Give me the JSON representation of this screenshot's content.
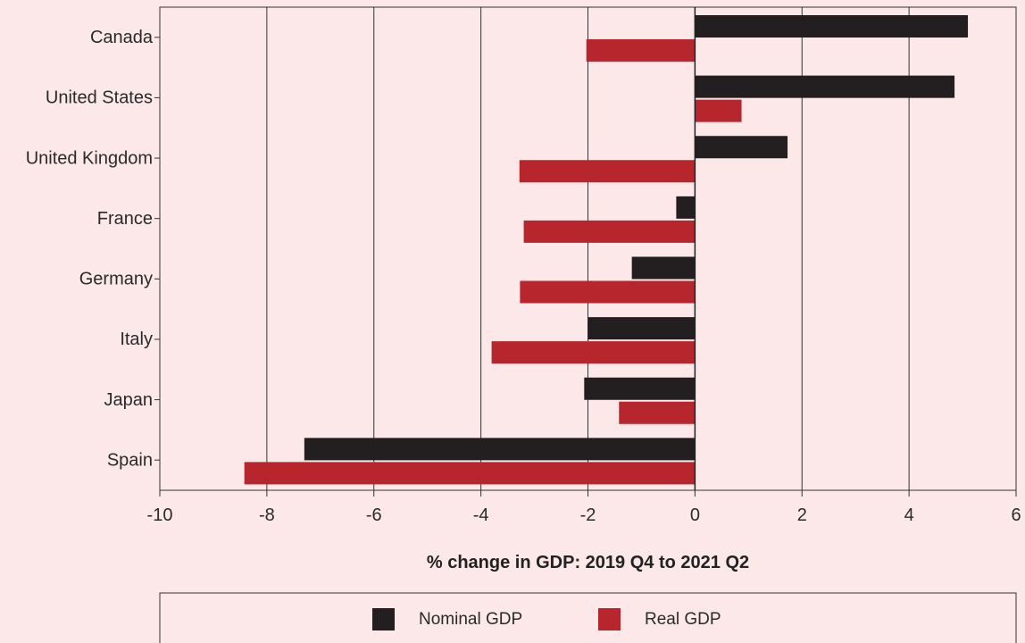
{
  "chart_data": {
    "type": "bar",
    "orientation": "horizontal",
    "title": "",
    "xlabel": "% change in GDP: 2019 Q4 to 2021 Q2",
    "ylabel": "",
    "xlim": [
      -10,
      6
    ],
    "xticks": [
      -10,
      -8,
      -6,
      -4,
      -2,
      0,
      2,
      4,
      6
    ],
    "xtick_labels": [
      "-10",
      "-8",
      "-6",
      "-4",
      "-2",
      "0",
      "2",
      "4",
      "6"
    ],
    "grid": "vertical",
    "legend_position": "bottom",
    "categories": [
      "Canada",
      "United States",
      "United Kingdom",
      "France",
      "Germany",
      "Italy",
      "Japan",
      "Spain"
    ],
    "series": [
      {
        "name": "Nominal GDP",
        "color": "#231f20",
        "values": [
          5.1,
          4.85,
          1.73,
          -0.35,
          -1.18,
          -2.0,
          -2.07,
          -7.3
        ]
      },
      {
        "name": "Real GDP",
        "color": "#b8262d",
        "values": [
          -2.03,
          0.87,
          -3.28,
          -3.2,
          -3.27,
          -3.8,
          -1.42,
          -8.42
        ]
      }
    ]
  }
}
